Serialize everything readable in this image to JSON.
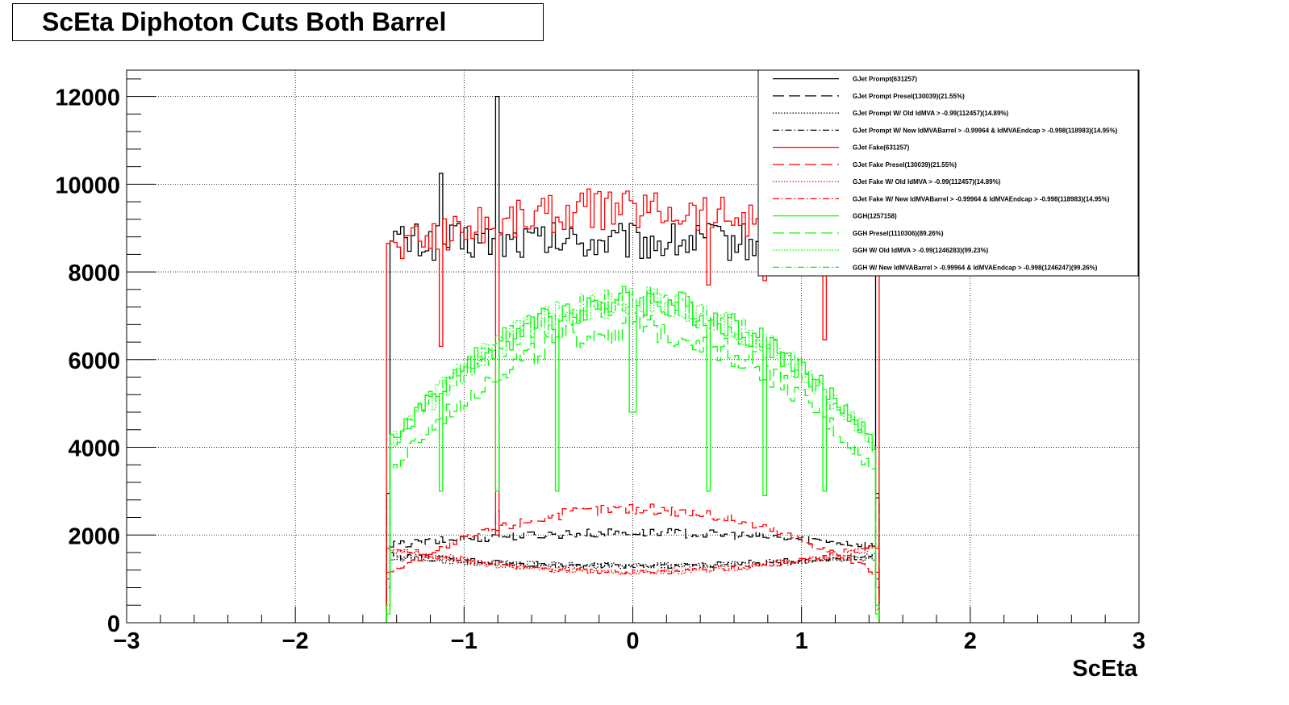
{
  "chart_data": {
    "type": "line",
    "title": "ScEta Diphoton Cuts Both Barrel",
    "xlabel": "ScEta",
    "ylabel": "",
    "xlim": [
      -3,
      3
    ],
    "ylim": [
      0,
      12600
    ],
    "x_ticks": [
      "−3",
      "−2",
      "−1",
      "0",
      "1",
      "2",
      "3"
    ],
    "x_tick_values": [
      -3,
      -2,
      -1,
      0,
      1,
      2,
      3
    ],
    "y_ticks": [
      "0",
      "2000",
      "4000",
      "6000",
      "8000",
      "10000",
      "12000"
    ],
    "y_tick_values": [
      0,
      2000,
      4000,
      6000,
      8000,
      10000,
      12000
    ],
    "grid": true,
    "legend_position": "top-right",
    "bin_range": [
      -1.46,
      1.46
    ],
    "spike_positions": [
      -1.14,
      -0.8,
      -0.45,
      0.0,
      0.44,
      0.79,
      1.13
    ],
    "series": [
      {
        "name": "GJet Prompt(631257)",
        "color": "#000000",
        "dash": "solid",
        "profile": {
          "edge": 8700,
          "center": 8700,
          "p": 2,
          "edge_spike": 2950
        },
        "spikes": {
          "-1.14": 10250,
          "-0.8": 12000,
          "0.44": 9100
        }
      },
      {
        "name": "GJet Prompt Presel(130039)(21.55%)",
        "color": "#000000",
        "dash": "longdash",
        "profile": {
          "edge": 1750,
          "center": 2050,
          "p": 2,
          "edge_spike": 2850
        },
        "spikes": {
          "-0.8": 2550
        }
      },
      {
        "name": "GJet Prompt W/ Old IdMVA > -0.99(112457)(14.89%)",
        "color": "#000000",
        "dash": "dotted",
        "profile": {
          "edge": 1500,
          "center": 1300,
          "p": 2,
          "edge_spike": 1000
        },
        "spikes": {}
      },
      {
        "name": "GJet Prompt W/ New IdMVABarrel > -0.99964 & IdMVAEndcap > -0.998(118983)(14.95%)",
        "color": "#000000",
        "dash": "dashdot",
        "profile": {
          "edge": 1550,
          "center": 1300,
          "p": 2,
          "edge_spike": 800
        },
        "spikes": {}
      },
      {
        "name": "GJet Fake(631257)",
        "color": "#ff0000",
        "dash": "solid",
        "profile": {
          "edge": 8500,
          "center": 9450,
          "p": 2,
          "edge_spike": 8650
        },
        "spikes": {
          "-1.14": 6300,
          "-0.8": 2000,
          "0.44": 7700,
          "0.79": 7800,
          "1.13": 6450
        }
      },
      {
        "name": "GJet Fake Presel(130039)(21.55%)",
        "color": "#ff0000",
        "dash": "longdash",
        "profile": {
          "edge": 1100,
          "center": 2600,
          "p": 2,
          "edge_spike": 1150
        },
        "spikes": {}
      },
      {
        "name": "GJet Fake W/ Old IdMVA > -0.99(112457)(14.89%)",
        "color": "#ff0000",
        "dash": "dotted",
        "profile": {
          "edge": 1700,
          "center": 1150,
          "p": 2,
          "edge_spike": 1750
        },
        "spikes": {}
      },
      {
        "name": "GJet Fake W/ New IdMVABarrel > -0.99964 & IdMVAEndcap > -0.998(118983)(14.95%)",
        "color": "#ff0000",
        "dash": "dashdot",
        "profile": {
          "edge": 1750,
          "center": 1150,
          "p": 2,
          "edge_spike": 1700
        },
        "spikes": {}
      },
      {
        "name": "GGH(1257158)",
        "color": "#00ff00",
        "dash": "solid",
        "profile": {
          "edge": 4000,
          "center": 7350,
          "p": 2,
          "edge_spike": 200
        },
        "spikes": {
          "-1.14": 3000,
          "-0.8": 3000,
          "-0.45": 3000,
          "0.0": 4800,
          "0.44": 3000,
          "0.79": 2900,
          "1.13": 3000
        }
      },
      {
        "name": "GGH Presel(1110306)(89.26%)",
        "color": "#00ff00",
        "dash": "longdash",
        "profile": {
          "edge": 3300,
          "center": 6700,
          "p": 2,
          "edge_spike": 300
        },
        "spikes": {}
      },
      {
        "name": "GGH W/ Old IdMVA > -0.99(1246283)(99.23%)",
        "color": "#00ff00",
        "dash": "dotted",
        "profile": {
          "edge": 3950,
          "center": 7300,
          "p": 2,
          "edge_spike": 400
        },
        "spikes": {}
      },
      {
        "name": "GGH W/ New IdMVABarrel > -0.99964 & IdMVAEndcap > -0.998(1246247)(99.26%)",
        "color": "#00ff00",
        "dash": "dashdot",
        "profile": {
          "edge": 3950,
          "center": 7300,
          "p": 2,
          "edge_spike": 400
        },
        "spikes": {}
      }
    ]
  }
}
